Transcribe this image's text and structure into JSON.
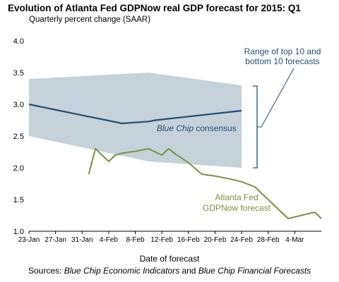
{
  "chart_data": {
    "type": "line",
    "title": "Evolution of Atlanta Fed GDPNow real GDP forecast for 2015: Q1",
    "subtitle": "Quarterly percent change (SAAR)",
    "xlabel": "Date of forecast",
    "ylabel": "",
    "ylim": [
      1.0,
      4.0
    ],
    "yticks": [
      "1.0",
      "1.5",
      "2.0",
      "2.5",
      "3.0",
      "3.5",
      "4.0"
    ],
    "xlim": [
      "2015-01-23",
      "2015-03-08"
    ],
    "xtick_dates": [
      "2015-01-23",
      "2015-01-27",
      "2015-01-31",
      "2015-02-04",
      "2015-02-08",
      "2015-02-12",
      "2015-02-16",
      "2015-02-20",
      "2015-02-24",
      "2015-02-28",
      "2015-03-04"
    ],
    "xtick_labels": [
      "23-Jan",
      "27-Jan",
      "31-Jan",
      "4-Feb",
      "8-Feb",
      "12-Feb",
      "16-Feb",
      "20-Feb",
      "24-Feb",
      "28-Feb",
      "4-Mar"
    ],
    "grid": false,
    "band": {
      "name": "Range of top 10 and bottom 10 forecasts",
      "color": "#c5d2da",
      "upper": [
        [
          "2015-01-23",
          3.4
        ],
        [
          "2015-02-10",
          3.5
        ],
        [
          "2015-02-24",
          3.3
        ]
      ],
      "lower": [
        [
          "2015-01-23",
          2.5
        ],
        [
          "2015-02-10",
          2.1
        ],
        [
          "2015-02-24",
          2.0
        ]
      ]
    },
    "series": [
      {
        "name": "Blue Chip consensus",
        "color": "#1f4e79",
        "points": [
          [
            "2015-01-23",
            3.0
          ],
          [
            "2015-02-06",
            2.7
          ],
          [
            "2015-02-10",
            2.73
          ],
          [
            "2015-02-11",
            2.75
          ],
          [
            "2015-02-24",
            2.9
          ]
        ]
      },
      {
        "name": "Atlanta Fed GDPNow forecast",
        "color": "#7a9140",
        "points": [
          [
            "2015-02-01",
            1.9
          ],
          [
            "2015-02-02",
            2.3
          ],
          [
            "2015-02-04",
            2.1
          ],
          [
            "2015-02-05",
            2.2
          ],
          [
            "2015-02-06",
            2.23
          ],
          [
            "2015-02-08",
            2.26
          ],
          [
            "2015-02-10",
            2.3
          ],
          [
            "2015-02-12",
            2.2
          ],
          [
            "2015-02-13",
            2.3
          ],
          [
            "2015-02-14",
            2.22
          ],
          [
            "2015-02-16",
            2.08
          ],
          [
            "2015-02-18",
            1.9
          ],
          [
            "2015-02-20",
            1.87
          ],
          [
            "2015-02-22",
            1.83
          ],
          [
            "2015-02-24",
            1.78
          ],
          [
            "2015-02-26",
            1.7
          ],
          [
            "2015-03-01",
            1.4
          ],
          [
            "2015-03-03",
            1.2
          ],
          [
            "2015-03-07",
            1.3
          ],
          [
            "2015-03-08",
            1.2
          ]
        ]
      }
    ],
    "annotations": {
      "range_label_line1": "Range of top 10 and",
      "range_label_line2": "bottom 10 forecasts",
      "bluechip_label_part1": "Blue Chip",
      "bluechip_label_part2": " consensus",
      "gdpnow_label_line1": "Atlanta Fed",
      "gdpnow_label_line2": "GDPNow forecast"
    }
  },
  "source": {
    "prefix": "Sources: ",
    "italic1": "Blue Chip Economic Indicators",
    "middle": " and ",
    "italic2": "Blue Chip Financial Forecasts"
  }
}
